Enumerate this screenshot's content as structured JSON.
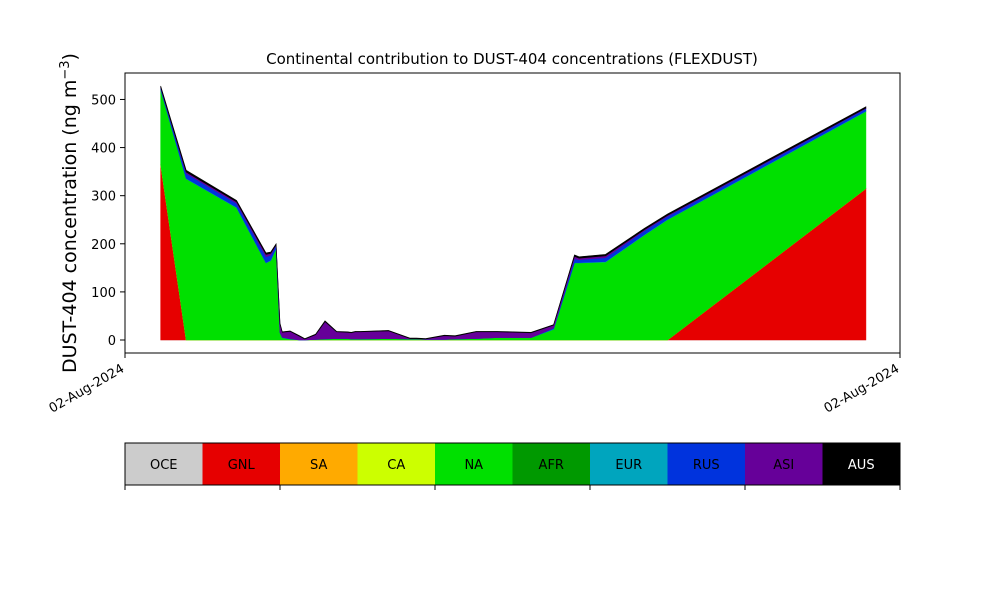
{
  "chart_data": {
    "type": "area",
    "stacked": true,
    "title": "Continental contribution to DUST-404 concentrations (FLEXDUST)",
    "ylabel": "DUST-404 concentration (ng m",
    "ylabel_exponent": "−3",
    "ylabel_suffix": ")",
    "ylim": [
      -27,
      555
    ],
    "yticks": [
      0,
      100,
      200,
      300,
      400,
      500
    ],
    "xlim": [
      0,
      100
    ],
    "xtick_labels": [
      "02-Aug-2024",
      "02-Aug-2024"
    ],
    "x": [
      4.6,
      7.9,
      14.4,
      18.2,
      18.8,
      19.5,
      20.0,
      20.3,
      21.3,
      22.5,
      23.2,
      24.6,
      25.8,
      27.3,
      28.7,
      29.2,
      29.7,
      30.4,
      34.0,
      36.8,
      37.6,
      38.8,
      41.2,
      42.6,
      45.3,
      48.0,
      52.4,
      55.3,
      58.0,
      58.6,
      62.0,
      67.0,
      70.0,
      95.6
    ],
    "series": [
      {
        "name": "OCE",
        "color": "#cccccc",
        "values": [
          0,
          0,
          0,
          0,
          0,
          0,
          0,
          0,
          0,
          0,
          0,
          0,
          0,
          0,
          0,
          0,
          0,
          0,
          0,
          0,
          0,
          0,
          0,
          0,
          0,
          0,
          0,
          0,
          0,
          0,
          0,
          0,
          0,
          0
        ]
      },
      {
        "name": "GNL",
        "color": "#e60000",
        "values": [
          365,
          0,
          0,
          0,
          0,
          0,
          0,
          0,
          0,
          0,
          0,
          0,
          0,
          0,
          0,
          0,
          0,
          0,
          0,
          0,
          0,
          0,
          0,
          0,
          0,
          0,
          0,
          0,
          0,
          0,
          0,
          0,
          0,
          315
        ]
      },
      {
        "name": "SA",
        "color": "#ffaa00",
        "values": [
          0,
          0,
          0,
          0,
          0,
          0,
          0,
          0,
          0,
          0,
          0,
          0,
          0,
          0,
          0,
          0,
          0,
          0,
          0,
          0,
          0,
          0,
          0,
          0,
          0,
          0,
          0,
          0,
          0,
          0,
          0,
          0,
          0,
          0
        ]
      },
      {
        "name": "CA",
        "color": "#ccff00",
        "values": [
          0,
          0,
          0,
          0,
          0,
          0,
          0,
          0,
          0,
          0,
          0,
          0,
          0,
          0,
          0,
          0,
          0,
          0,
          0,
          0,
          0,
          0,
          0,
          0,
          0,
          0,
          0,
          0,
          0,
          0,
          0,
          0,
          0,
          0
        ]
      },
      {
        "name": "NA",
        "color": "#00e000",
        "values": [
          155,
          335,
          275,
          160,
          165,
          190,
          15,
          5,
          2,
          0,
          0,
          1,
          2,
          3,
          3,
          2,
          2,
          2,
          3,
          2,
          2,
          1,
          1,
          2,
          3,
          5,
          5,
          22,
          160,
          160,
          162,
          218,
          250,
          160
        ]
      },
      {
        "name": "AFR",
        "color": "#009900",
        "values": [
          0,
          0,
          0,
          0,
          0,
          0,
          0,
          0,
          0,
          0,
          0,
          0,
          0,
          0,
          0,
          0,
          0,
          0,
          0,
          0,
          0,
          0,
          0,
          0,
          0,
          0,
          0,
          0,
          0,
          0,
          0,
          0,
          0,
          0
        ]
      },
      {
        "name": "EUR",
        "color": "#00a5be",
        "values": [
          1,
          1,
          1,
          1,
          1,
          1,
          0,
          0,
          0,
          0,
          0,
          0,
          0,
          0,
          0,
          0,
          0,
          0,
          0,
          0,
          0,
          0,
          0,
          0,
          0,
          0,
          0,
          1,
          1,
          1,
          1,
          1,
          1,
          1
        ]
      },
      {
        "name": "RUS",
        "color": "#0033dd",
        "values": [
          3,
          10,
          8,
          12,
          10,
          6,
          1,
          1,
          1,
          0,
          0,
          0,
          0,
          0,
          0,
          0,
          0,
          0,
          0,
          0,
          0,
          0,
          0,
          0,
          0,
          0,
          0,
          2,
          8,
          6,
          8,
          8,
          6,
          5
        ]
      },
      {
        "name": "ASI",
        "color": "#660099",
        "values": [
          1,
          3,
          3,
          5,
          4,
          1,
          17,
          10,
          15,
          8,
          2,
          10,
          36,
          14,
          13,
          13,
          15,
          15,
          16,
          1,
          1,
          1,
          8,
          6,
          14,
          12,
          10,
          6,
          5,
          3,
          4,
          2,
          2,
          1
        ]
      },
      {
        "name": "AUS",
        "color": "#000000",
        "values": [
          3,
          4,
          3,
          3,
          3,
          2,
          2,
          1,
          1,
          1,
          1,
          1,
          2,
          1,
          1,
          1,
          1,
          1,
          1,
          1,
          1,
          1,
          1,
          1,
          1,
          1,
          1,
          1,
          3,
          3,
          3,
          3,
          3,
          3
        ]
      }
    ],
    "legend_placement": "bottom",
    "legend": [
      {
        "name": "OCE",
        "color": "#cccccc",
        "text_color": "#000000"
      },
      {
        "name": "GNL",
        "color": "#e60000",
        "text_color": "#000000"
      },
      {
        "name": "SA",
        "color": "#ffaa00",
        "text_color": "#000000"
      },
      {
        "name": "CA",
        "color": "#ccff00",
        "text_color": "#000000"
      },
      {
        "name": "NA",
        "color": "#00e000",
        "text_color": "#000000"
      },
      {
        "name": "AFR",
        "color": "#009900",
        "text_color": "#000000"
      },
      {
        "name": "EUR",
        "color": "#00a5be",
        "text_color": "#000000"
      },
      {
        "name": "RUS",
        "color": "#0033dd",
        "text_color": "#000000"
      },
      {
        "name": "ASI",
        "color": "#660099",
        "text_color": "#000000"
      },
      {
        "name": "AUS",
        "color": "#000000",
        "text_color": "#ffffff"
      }
    ],
    "grid": false
  }
}
